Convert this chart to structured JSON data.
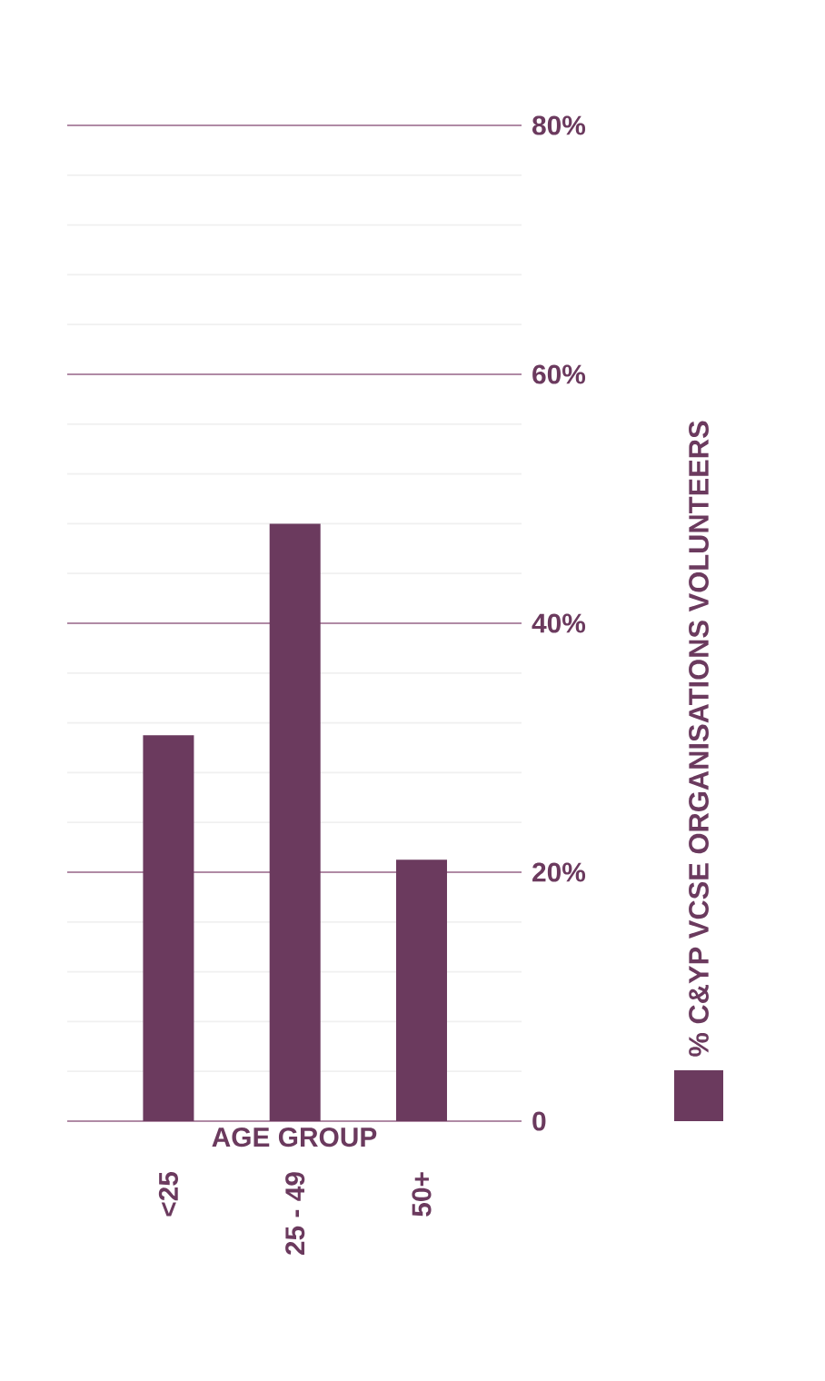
{
  "chart_data": {
    "type": "bar",
    "xlabel": "AGE GROUP",
    "categories": [
      "<25",
      "25 - 49",
      "50+"
    ],
    "series": [
      {
        "name": "% C&YP VCSE ORGANISATIONS VOLUNTEERS",
        "color": "#6b3a5e",
        "values": [
          31,
          48,
          21
        ]
      }
    ],
    "ylim": [
      0,
      80
    ],
    "yticks": [
      0,
      {
        "value": 4,
        "label": null
      },
      {
        "value": 8,
        "label": null
      },
      {
        "value": 12,
        "label": null
      },
      {
        "value": 16,
        "label": null
      },
      {
        "value": 20,
        "label": "20%"
      },
      {
        "value": 24,
        "label": null
      },
      {
        "value": 28,
        "label": null
      },
      {
        "value": 32,
        "label": null
      },
      {
        "value": 36,
        "label": null
      },
      {
        "value": 40,
        "label": "40%"
      },
      {
        "value": 44,
        "label": null
      },
      {
        "value": 48,
        "label": null
      },
      {
        "value": 52,
        "label": null
      },
      {
        "value": 56,
        "label": null
      },
      {
        "value": 60,
        "label": "60%"
      },
      {
        "value": 64,
        "label": null
      },
      {
        "value": 68,
        "label": null
      },
      {
        "value": 72,
        "label": null
      },
      {
        "value": 76,
        "label": null
      },
      {
        "value": 80,
        "label": "80%"
      }
    ],
    "grid": "y",
    "legend": "right"
  }
}
